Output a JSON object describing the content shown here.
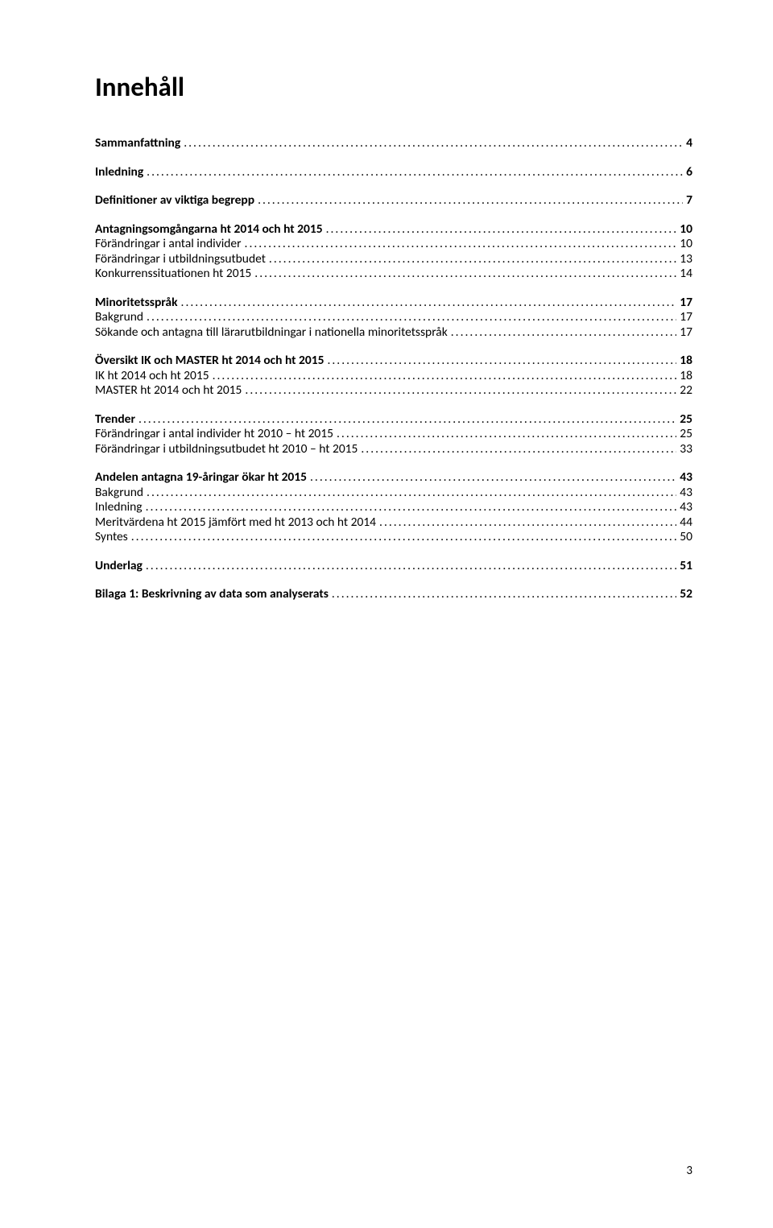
{
  "title": "Innehåll",
  "pageNumber": "3",
  "dots": "..................................................................................................................................................................................................................",
  "toc": [
    {
      "group": [
        {
          "label": "Sammanfattning",
          "page": "4",
          "bold": true
        }
      ]
    },
    {
      "group": [
        {
          "label": "Inledning",
          "page": "6",
          "bold": true
        }
      ]
    },
    {
      "group": [
        {
          "label": "Definitioner av viktiga begrepp",
          "page": "7",
          "bold": true
        }
      ]
    },
    {
      "group": [
        {
          "label": "Antagningsomgångarna ht 2014 och ht 2015",
          "page": "10",
          "bold": true
        },
        {
          "label": "Förändringar i antal individer",
          "page": "10",
          "bold": false
        },
        {
          "label": "Förändringar i utbildningsutbudet",
          "page": "13",
          "bold": false
        },
        {
          "label": "Konkurrenssituationen ht 2015",
          "page": "14",
          "bold": false
        }
      ]
    },
    {
      "group": [
        {
          "label": "Minoritetsspråk",
          "page": "17",
          "bold": true
        },
        {
          "label": "Bakgrund",
          "page": "17",
          "bold": false
        },
        {
          "label": "Sökande och antagna till lärarutbildningar i nationella minoritetsspråk",
          "page": "17",
          "bold": false
        }
      ]
    },
    {
      "group": [
        {
          "label": "Översikt IK och MASTER ht 2014 och ht 2015",
          "page": "18",
          "bold": true
        },
        {
          "label": "IK ht 2014 och ht 2015",
          "page": "18",
          "bold": false
        },
        {
          "label": "MASTER ht 2014 och ht 2015",
          "page": "22",
          "bold": false
        }
      ]
    },
    {
      "group": [
        {
          "label": "Trender",
          "page": "25",
          "bold": true
        },
        {
          "label": "Förändringar i antal individer ht 2010 – ht 2015",
          "page": "25",
          "bold": false
        },
        {
          "label": "Förändringar i utbildningsutbudet ht 2010 – ht 2015",
          "page": "33",
          "bold": false
        }
      ]
    },
    {
      "group": [
        {
          "label": "Andelen antagna 19-åringar ökar ht 2015",
          "page": "43",
          "bold": true
        },
        {
          "label": "Bakgrund",
          "page": "43",
          "bold": false
        },
        {
          "label": "Inledning",
          "page": "43",
          "bold": false
        },
        {
          "label": "Meritvärdena ht 2015 jämfört med ht 2013 och ht 2014",
          "page": "44",
          "bold": false
        },
        {
          "label": "Syntes",
          "page": "50",
          "bold": false
        }
      ]
    },
    {
      "group": [
        {
          "label": "Underlag",
          "page": "51",
          "bold": true
        }
      ]
    },
    {
      "group": [
        {
          "label": "Bilaga 1: Beskrivning av data som analyserats",
          "page": "52",
          "bold": true
        }
      ]
    }
  ]
}
